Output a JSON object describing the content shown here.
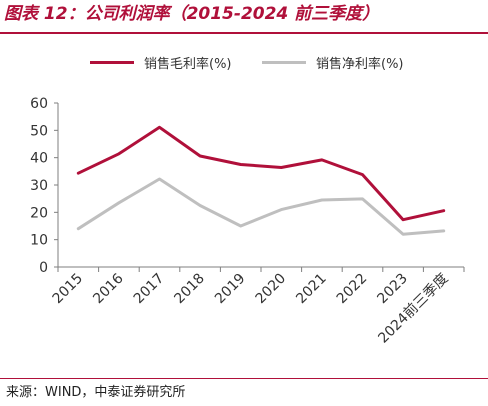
{
  "title": "图表 12：公司利润率（2015-2024 前三季度）",
  "source": "来源：WIND，中泰证券研究所",
  "chart_data": {
    "type": "line",
    "categories": [
      "2015",
      "2016",
      "2017",
      "2018",
      "2019",
      "2020",
      "2021",
      "2022",
      "2023",
      "2024前三季度"
    ],
    "series": [
      {
        "name": "销售毛利率(%)",
        "color": "#b0103a",
        "values": [
          34.3,
          41.4,
          51.1,
          40.6,
          37.5,
          36.4,
          39.2,
          33.8,
          17.3,
          20.6
        ]
      },
      {
        "name": "销售净利率(%)",
        "color": "#bfbfbf",
        "values": [
          14.0,
          23.5,
          32.2,
          22.5,
          15.0,
          21.0,
          24.5,
          24.9,
          12.0,
          13.2
        ]
      }
    ],
    "ylim": [
      0,
      60
    ],
    "yticks": [
      0,
      10,
      20,
      30,
      40,
      50,
      60
    ],
    "grid": false,
    "legend": "top-center"
  }
}
